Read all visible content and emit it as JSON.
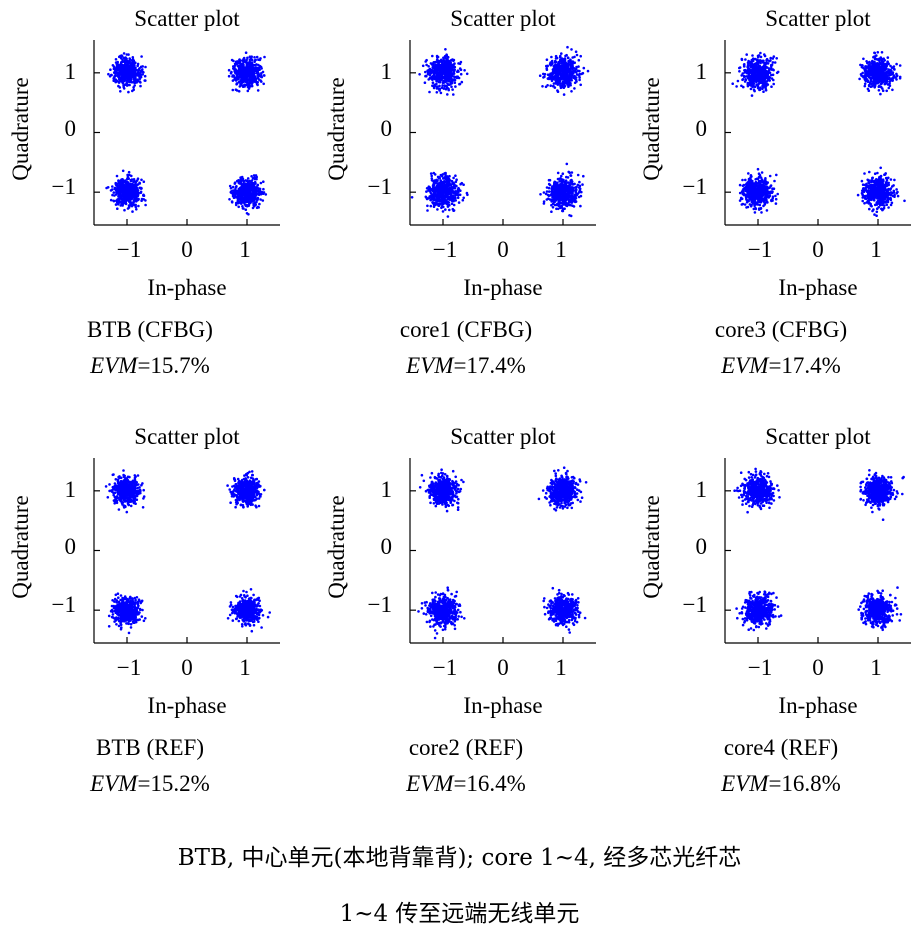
{
  "figure_caption": {
    "line1": "BTB, 中心单元(本地背靠背); core 1~4, 经多芯光纤芯",
    "line2": "1~4 传至远端无线单元"
  },
  "colors": {
    "points": "#0000ff",
    "axes": "#000000"
  },
  "chart_data": [
    {
      "type": "scatter",
      "title": "Scatter plot",
      "xlabel": "In-phase",
      "ylabel": "Quadrature",
      "xlim": [
        -1.55,
        1.55
      ],
      "ylim": [
        -1.55,
        1.55
      ],
      "xticks": [
        "−1",
        "0",
        "1"
      ],
      "yticks": [
        "1",
        "0",
        "−1"
      ],
      "clusters": [
        [
          -1,
          1
        ],
        [
          1,
          1
        ],
        [
          -1,
          -1
        ],
        [
          1,
          -1
        ]
      ],
      "points_per_cluster": 500,
      "spread_std": 0.157,
      "caption": "BTB (CFBG)",
      "evm_label": "EVM",
      "evm_value": "=15.7%"
    },
    {
      "type": "scatter",
      "title": "Scatter plot",
      "xlabel": "In-phase",
      "ylabel": "Quadrature",
      "xlim": [
        -1.55,
        1.55
      ],
      "ylim": [
        -1.55,
        1.55
      ],
      "xticks": [
        "−1",
        "0",
        "1"
      ],
      "yticks": [
        "1",
        "0",
        "−1"
      ],
      "clusters": [
        [
          -1,
          1
        ],
        [
          1,
          1
        ],
        [
          -1,
          -1
        ],
        [
          1,
          -1
        ]
      ],
      "points_per_cluster": 500,
      "spread_std": 0.174,
      "caption": "core1 (CFBG)",
      "evm_label": "EVM",
      "evm_value": "=17.4%"
    },
    {
      "type": "scatter",
      "title": "Scatter plot",
      "xlabel": "In-phase",
      "ylabel": "Quadrature",
      "xlim": [
        -1.55,
        1.55
      ],
      "ylim": [
        -1.55,
        1.55
      ],
      "xticks": [
        "−1",
        "0",
        "1"
      ],
      "yticks": [
        "1",
        "0",
        "−1"
      ],
      "clusters": [
        [
          -1,
          1
        ],
        [
          1,
          1
        ],
        [
          -1,
          -1
        ],
        [
          1,
          -1
        ]
      ],
      "points_per_cluster": 500,
      "spread_std": 0.174,
      "caption": "core3 (CFBG)",
      "evm_label": "EVM",
      "evm_value": "=17.4%"
    },
    {
      "type": "scatter",
      "title": "Scatter plot",
      "xlabel": "In-phase",
      "ylabel": "Quadrature",
      "xlim": [
        -1.55,
        1.55
      ],
      "ylim": [
        -1.55,
        1.55
      ],
      "xticks": [
        "−1",
        "0",
        "1"
      ],
      "yticks": [
        "1",
        "0",
        "−1"
      ],
      "clusters": [
        [
          -1,
          1
        ],
        [
          1,
          1
        ],
        [
          -1,
          -1
        ],
        [
          1,
          -1
        ]
      ],
      "points_per_cluster": 500,
      "spread_std": 0.152,
      "caption": "BTB (REF)",
      "evm_label": "EVM",
      "evm_value": "=15.2%"
    },
    {
      "type": "scatter",
      "title": "Scatter plot",
      "xlabel": "In-phase",
      "ylabel": "Quadrature",
      "xlim": [
        -1.55,
        1.55
      ],
      "ylim": [
        -1.55,
        1.55
      ],
      "xticks": [
        "−1",
        "0",
        "1"
      ],
      "yticks": [
        "1",
        "0",
        "−1"
      ],
      "clusters": [
        [
          -1,
          1
        ],
        [
          1,
          1
        ],
        [
          -1,
          -1
        ],
        [
          1,
          -1
        ]
      ],
      "points_per_cluster": 500,
      "spread_std": 0.164,
      "caption": "core2 (REF)",
      "evm_label": "EVM",
      "evm_value": "=16.4%"
    },
    {
      "type": "scatter",
      "title": "Scatter plot",
      "xlabel": "In-phase",
      "ylabel": "Quadrature",
      "xlim": [
        -1.55,
        1.55
      ],
      "ylim": [
        -1.55,
        1.55
      ],
      "xticks": [
        "−1",
        "0",
        "1"
      ],
      "yticks": [
        "1",
        "0",
        "−1"
      ],
      "clusters": [
        [
          -1,
          1
        ],
        [
          1,
          1
        ],
        [
          -1,
          -1
        ],
        [
          1,
          -1
        ]
      ],
      "points_per_cluster": 500,
      "spread_std": 0.168,
      "caption": "core4 (REF)",
      "evm_label": "EVM",
      "evm_value": "=16.8%"
    }
  ]
}
